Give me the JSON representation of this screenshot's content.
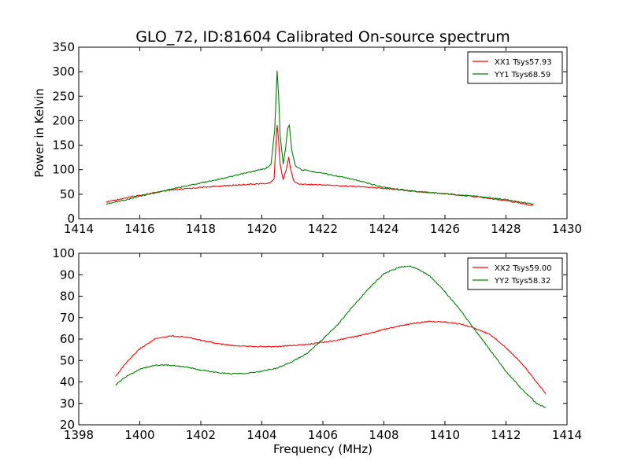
{
  "figure": {
    "title": "GLO_72, ID:81604 Calibrated On-source spectrum"
  },
  "chart_data": [
    {
      "type": "line",
      "title": "GLO_72, ID:81604 Calibrated On-source spectrum",
      "xlabel": "",
      "ylabel": "Power in Kelvin",
      "xlim": [
        1414,
        1430
      ],
      "ylim": [
        0,
        350
      ],
      "xticks": [
        1414,
        1416,
        1418,
        1420,
        1422,
        1424,
        1426,
        1428,
        1430
      ],
      "yticks": [
        0,
        50,
        100,
        150,
        200,
        250,
        300,
        350
      ],
      "grid": false,
      "legend": "top-right",
      "series": [
        {
          "name": "XX1 Tsys57.93",
          "color": "#ff0000",
          "x": [
            1414.9,
            1415.5,
            1416.0,
            1417.0,
            1418.0,
            1419.0,
            1419.8,
            1420.2,
            1420.4,
            1420.45,
            1420.5,
            1420.55,
            1420.6,
            1420.7,
            1420.8,
            1420.88,
            1420.95,
            1421.05,
            1421.2,
            1421.5,
            1422.0,
            1423.0,
            1424.0,
            1425.0,
            1426.0,
            1427.0,
            1428.0,
            1428.9
          ],
          "y": [
            34,
            42,
            48,
            58,
            64,
            68,
            71,
            72,
            80,
            140,
            192,
            160,
            110,
            80,
            100,
            125,
            100,
            76,
            71,
            70,
            69,
            66,
            62,
            56,
            51,
            45,
            37,
            27
          ]
        },
        {
          "name": "YY1 Tsys68.59",
          "color": "#008000",
          "x": [
            1414.9,
            1415.5,
            1416.0,
            1417.0,
            1418.0,
            1419.0,
            1419.6,
            1420.1,
            1420.3,
            1420.42,
            1420.5,
            1420.55,
            1420.6,
            1420.7,
            1420.78,
            1420.85,
            1420.9,
            1420.98,
            1421.1,
            1421.3,
            1421.6,
            1422.0,
            1423.0,
            1424.0,
            1425.0,
            1426.0,
            1427.0,
            1428.0,
            1428.9
          ],
          "y": [
            30,
            38,
            46,
            60,
            73,
            86,
            95,
            102,
            110,
            180,
            302,
            250,
            170,
            112,
            145,
            185,
            192,
            140,
            108,
            100,
            97,
            93,
            80,
            64,
            56,
            51,
            46,
            39,
            30
          ]
        }
      ]
    },
    {
      "type": "line",
      "title": "",
      "xlabel": "Frequency (MHz)",
      "ylabel": "",
      "xlim": [
        1398,
        1414
      ],
      "ylim": [
        20,
        100
      ],
      "xticks": [
        1398,
        1400,
        1402,
        1404,
        1406,
        1408,
        1410,
        1412,
        1414
      ],
      "yticks": [
        20,
        30,
        40,
        50,
        60,
        70,
        80,
        90,
        100
      ],
      "grid": false,
      "legend": "top-right",
      "series": [
        {
          "name": "XX2 Tsys59.00",
          "color": "#ff0000",
          "x": [
            1399.2,
            1399.5,
            1400.0,
            1400.5,
            1401.0,
            1401.5,
            1402.0,
            1402.5,
            1403.0,
            1403.5,
            1404.0,
            1404.5,
            1405.0,
            1405.5,
            1406.0,
            1406.5,
            1407.0,
            1407.5,
            1408.0,
            1408.5,
            1409.0,
            1409.5,
            1410.0,
            1410.5,
            1411.0,
            1411.5,
            1412.0,
            1412.5,
            1413.0,
            1413.3
          ],
          "y": [
            42.5,
            48,
            55.5,
            60,
            61.5,
            61,
            59.5,
            58,
            57,
            56.8,
            56.5,
            56.5,
            57,
            57.5,
            58.5,
            59.5,
            61,
            62.5,
            64.5,
            66,
            67.5,
            68.2,
            68,
            67,
            65,
            62,
            56,
            49,
            40,
            34.5
          ]
        },
        {
          "name": "YY2 Tsys58.32",
          "color": "#008000",
          "x": [
            1399.2,
            1399.5,
            1400.0,
            1400.5,
            1401.0,
            1401.5,
            1402.0,
            1402.5,
            1403.0,
            1403.5,
            1404.0,
            1404.5,
            1405.0,
            1405.5,
            1406.0,
            1406.5,
            1407.0,
            1407.5,
            1408.0,
            1408.5,
            1408.8,
            1409.0,
            1409.5,
            1410.0,
            1410.5,
            1411.0,
            1411.5,
            1412.0,
            1412.5,
            1413.0,
            1413.3
          ],
          "y": [
            38.5,
            42,
            46,
            47.8,
            47.8,
            47,
            45.5,
            44.5,
            43.8,
            44,
            45,
            46.5,
            49.5,
            53.5,
            60,
            67,
            75.5,
            83.5,
            90.5,
            93.5,
            94,
            93.5,
            89.5,
            82,
            73.5,
            64,
            54.5,
            45,
            37,
            30,
            28
          ]
        }
      ]
    }
  ]
}
